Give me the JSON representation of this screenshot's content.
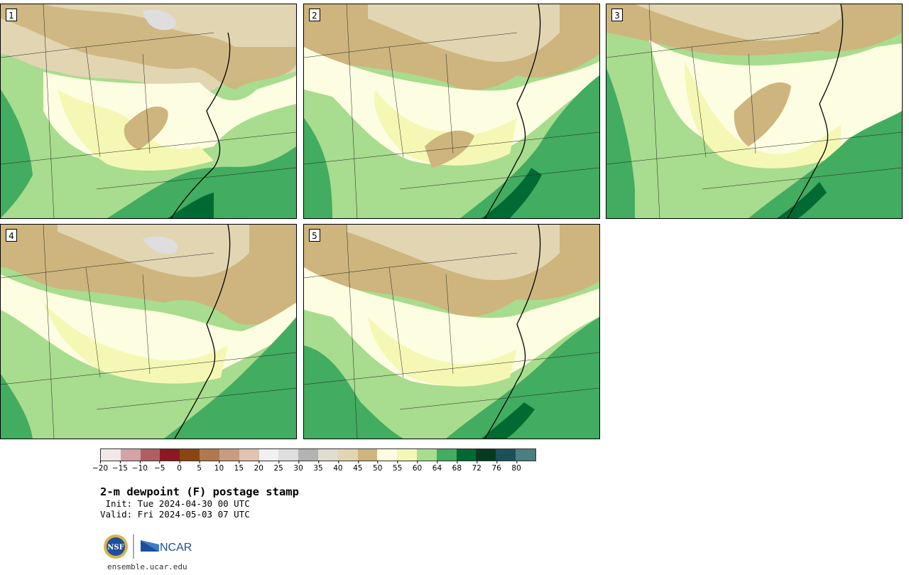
{
  "panels": [
    {
      "label": "1"
    },
    {
      "label": "2"
    },
    {
      "label": "3"
    },
    {
      "label": "4"
    },
    {
      "label": "5"
    }
  ],
  "colorbar": {
    "colors": [
      "#f3e8e8",
      "#d3a3a6",
      "#b05e64",
      "#8d1822",
      "#8b4513",
      "#b0784c",
      "#c89c80",
      "#e2c2b0",
      "#f1f1f1",
      "#dedede",
      "#b3b3b3",
      "#dfdcd0",
      "#e2d5b2",
      "#cdb57d",
      "#fdfde1",
      "#f5f8b4",
      "#a8dc8e",
      "#42ac60",
      "#016a32",
      "#043b20",
      "#1b5059",
      "#4c7d80"
    ],
    "tick_labels": [
      "−20",
      "−15",
      "−10",
      "−5",
      "0",
      "5",
      "10",
      "15",
      "20",
      "25",
      "30",
      "35",
      "40",
      "45",
      "50",
      "55",
      "60",
      "64",
      "68",
      "72",
      "76",
      "80"
    ]
  },
  "title": "2-m dewpoint (F) postage stamp",
  "init_line": " Init: Tue 2024-04-30 00 UTC",
  "valid_line": "Valid: Fri 2024-05-03 07 UTC",
  "logos": {
    "nsf": "NSF",
    "ncar": "NCAR"
  },
  "footer": "ensemble.ucar.edu",
  "map_colors": {
    "dry_tan_light": "#e2d5b2",
    "dry_tan": "#cdb57d",
    "gray": "#dedede",
    "pale_yellow": "#fdfde1",
    "yellow": "#f5f8b4",
    "light_green": "#a8dc8e",
    "green": "#42ac60",
    "dark_green": "#016a32"
  }
}
